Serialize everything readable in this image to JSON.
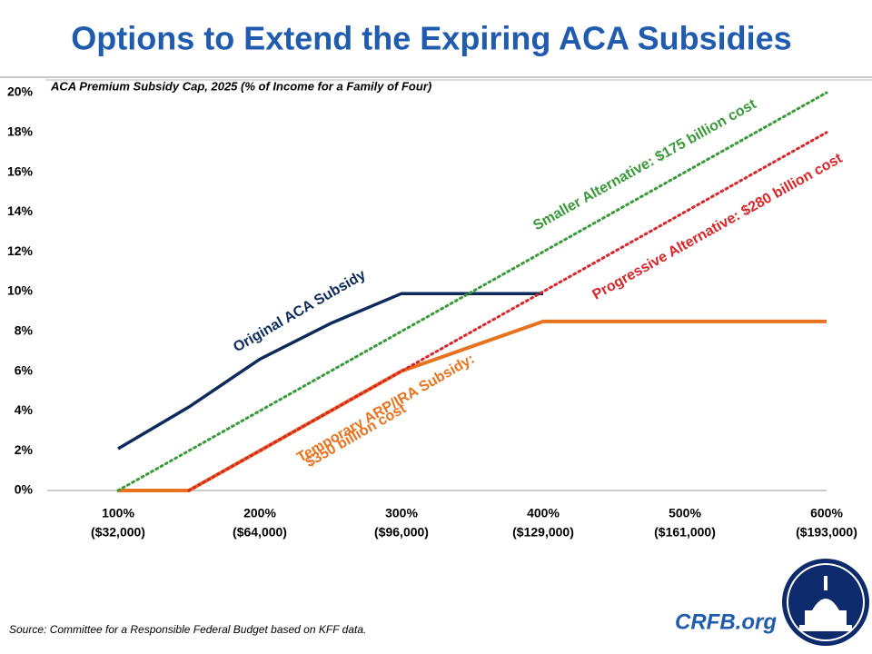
{
  "chart_data": {
    "type": "line",
    "title": "Options to Extend the Expiring ACA Subsidies",
    "subtitle": "ACA Premium Subsidy Cap, 2025 (% of Income for a Family of Four)",
    "xlim": [
      50,
      600
    ],
    "xticks": [
      {
        "value": 100,
        "label": "100%"
      },
      {
        "value": 200,
        "label": "200%"
      },
      {
        "value": 300,
        "label": "300%"
      },
      {
        "value": 400,
        "label": "400%"
      },
      {
        "value": 500,
        "label": "500%"
      },
      {
        "value": 600,
        "label": "600%"
      }
    ],
    "xtick_incomes": [
      "($32,000)",
      "($64,000)",
      "($96,000)",
      "($129,000)",
      "($161,000)",
      "($193,000)"
    ],
    "ylim": [
      0,
      20
    ],
    "yticks": [
      {
        "value": 0,
        "label": "0%"
      },
      {
        "value": 2,
        "label": "2%"
      },
      {
        "value": 4,
        "label": "4%"
      },
      {
        "value": 6,
        "label": "6%"
      },
      {
        "value": 8,
        "label": "8%"
      },
      {
        "value": 10,
        "label": "10%"
      },
      {
        "value": 12,
        "label": "12%"
      },
      {
        "value": 14,
        "label": "14%"
      },
      {
        "value": 16,
        "label": "16%"
      },
      {
        "value": 18,
        "label": "18%"
      },
      {
        "value": 20,
        "label": "20%"
      }
    ],
    "grid": false,
    "series": [
      {
        "name": "Original ACA Subsidy",
        "color": "#0d2a5c",
        "dotted": false,
        "x": [
          100,
          150,
          200,
          250,
          300,
          400
        ],
        "values": [
          2.1,
          4.2,
          6.6,
          8.4,
          9.9,
          9.9
        ]
      },
      {
        "name": "Temporary ARP/IRA Subsidy:",
        "color": "#e8731e",
        "dotted": false,
        "x": [
          100,
          150,
          200,
          250,
          300,
          400,
          600
        ],
        "values": [
          0,
          0,
          2,
          4,
          6,
          8.5,
          8.5
        ]
      },
      {
        "name": "Smaller Alternative: $175 billion cost",
        "color": "#3a9a3a",
        "dotted": true,
        "x": [
          100,
          600
        ],
        "values": [
          0,
          20
        ]
      },
      {
        "name": "Progressive Alternative: $280 billion cost",
        "color": "#d8262a",
        "dotted": true,
        "x": [
          150,
          600
        ],
        "values": [
          0,
          18
        ]
      }
    ],
    "annotations": [
      "$350 billion cost"
    ],
    "source": "Source: Committee for a Responsible Federal Budget based on KFF data.",
    "brand": "CRFB.org"
  }
}
